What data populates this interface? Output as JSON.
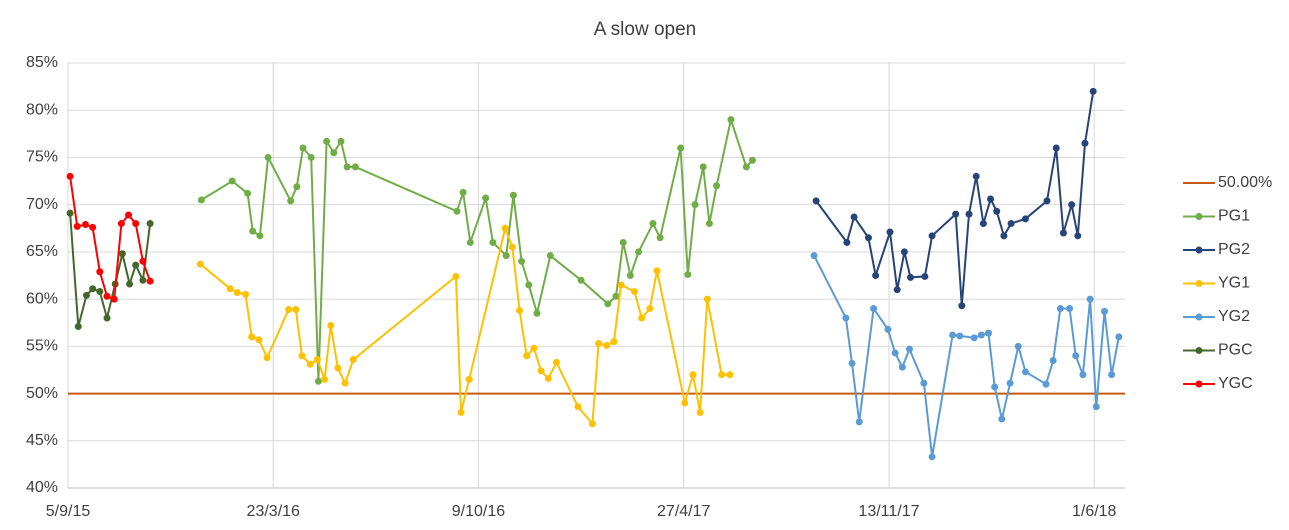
{
  "chart_data": {
    "type": "line",
    "title": "A slow open",
    "xlim": [
      "2015-09-05",
      "2018-07-01"
    ],
    "xticks": [
      {
        "value": "2015-09-05",
        "label": "5/9/15"
      },
      {
        "value": "2016-03-23",
        "label": "23/3/16"
      },
      {
        "value": "2016-10-09",
        "label": "9/10/16"
      },
      {
        "value": "2017-04-27",
        "label": "27/4/17"
      },
      {
        "value": "2017-11-13",
        "label": "13/11/17"
      },
      {
        "value": "2018-06-01",
        "label": "1/6/18"
      }
    ],
    "ylim": [
      40,
      85
    ],
    "yticks": [
      {
        "value": 40,
        "label": "40%"
      },
      {
        "value": 45,
        "label": "45%"
      },
      {
        "value": 50,
        "label": "50%"
      },
      {
        "value": 55,
        "label": "55%"
      },
      {
        "value": 60,
        "label": "60%"
      },
      {
        "value": 65,
        "label": "65%"
      },
      {
        "value": 70,
        "label": "70%"
      },
      {
        "value": 75,
        "label": "75%"
      },
      {
        "value": 80,
        "label": "80%"
      },
      {
        "value": 85,
        "label": "85%"
      }
    ],
    "grid": true,
    "legend": "right",
    "series": [
      {
        "name": "50.00%",
        "color": "#c55a11",
        "marker": false,
        "x": [
          "2015-09-05",
          "2018-07-01"
        ],
        "values": [
          50,
          50
        ]
      },
      {
        "name": "PG1",
        "color": "#70ad47",
        "x": [
          "2016-01-13",
          "2016-02-12",
          "2016-02-27",
          "2016-03-03",
          "2016-03-10",
          "2016-03-18",
          "2016-04-09",
          "2016-04-15",
          "2016-04-21",
          "2016-04-29",
          "2016-05-06",
          "2016-05-14",
          "2016-05-21",
          "2016-05-28",
          "2016-06-03",
          "2016-06-11",
          "2016-09-18",
          "2016-09-24",
          "2016-10-01",
          "2016-10-16",
          "2016-10-23",
          "2016-11-05",
          "2016-11-12",
          "2016-11-20",
          "2016-11-27",
          "2016-12-05",
          "2016-12-18",
          "2017-01-17",
          "2017-02-12",
          "2017-02-20",
          "2017-02-27",
          "2017-03-06",
          "2017-03-14",
          "2017-03-28",
          "2017-04-04",
          "2017-04-24",
          "2017-05-01",
          "2017-05-08",
          "2017-05-16",
          "2017-05-22",
          "2017-05-29",
          "2017-06-12",
          "2017-06-27",
          "2017-07-03"
        ],
        "values": [
          70.5,
          72.5,
          71.2,
          67.2,
          66.7,
          75.0,
          70.4,
          71.9,
          76.0,
          75.0,
          51.3,
          76.7,
          75.5,
          76.7,
          74.0,
          74.0,
          69.3,
          71.3,
          66.0,
          70.7,
          66.0,
          64.6,
          71.0,
          64.0,
          61.5,
          58.5,
          64.6,
          62.0,
          59.5,
          60.3,
          66.0,
          62.5,
          65.0,
          68.0,
          66.5,
          76.0,
          62.6,
          70.0,
          74.0,
          68.0,
          72.0,
          79.0,
          74.0,
          74.7
        ]
      },
      {
        "name": "PG2",
        "color": "#264478",
        "x": [
          "2017-09-03",
          "2017-10-03",
          "2017-10-10",
          "2017-10-24",
          "2017-10-31",
          "2017-11-14",
          "2017-11-21",
          "2017-11-28",
          "2017-12-04",
          "2017-12-18",
          "2017-12-25",
          "2018-01-17",
          "2018-01-23",
          "2018-01-30",
          "2018-02-06",
          "2018-02-13",
          "2018-02-20",
          "2018-02-26",
          "2018-03-05",
          "2018-03-12",
          "2018-03-26",
          "2018-04-16",
          "2018-04-25",
          "2018-05-02",
          "2018-05-10",
          "2018-05-16",
          "2018-05-23",
          "2018-05-31"
        ],
        "values": [
          70.4,
          66.0,
          68.7,
          66.5,
          62.5,
          67.1,
          61.0,
          65.0,
          62.3,
          62.4,
          66.7,
          69.0,
          59.3,
          69.0,
          73.0,
          68.0,
          70.6,
          69.3,
          66.7,
          68.0,
          68.5,
          70.4,
          76.0,
          67.0,
          70.0,
          66.7,
          76.5,
          82.0
        ]
      },
      {
        "name": "YG1",
        "color": "#ffc000",
        "x": [
          "2016-01-12",
          "2016-02-10",
          "2016-02-17",
          "2016-02-25",
          "2016-03-02",
          "2016-03-09",
          "2016-03-17",
          "2016-04-07",
          "2016-04-14",
          "2016-04-20",
          "2016-04-28",
          "2016-05-05",
          "2016-05-12",
          "2016-05-18",
          "2016-05-25",
          "2016-06-01",
          "2016-06-09",
          "2016-09-17",
          "2016-09-22",
          "2016-09-30",
          "2016-11-04",
          "2016-11-11",
          "2016-11-18",
          "2016-11-25",
          "2016-12-02",
          "2016-12-09",
          "2016-12-16",
          "2016-12-24",
          "2017-01-14",
          "2017-01-28",
          "2017-02-03",
          "2017-02-11",
          "2017-02-18",
          "2017-02-25",
          "2017-03-10",
          "2017-03-17",
          "2017-03-25",
          "2017-04-01",
          "2017-04-28",
          "2017-05-06",
          "2017-05-13",
          "2017-05-20",
          "2017-06-03",
          "2017-06-11"
        ],
        "values": [
          63.7,
          61.1,
          60.7,
          60.5,
          56.0,
          55.7,
          53.8,
          58.9,
          58.9,
          54.0,
          53.1,
          53.6,
          51.5,
          57.2,
          52.7,
          51.1,
          53.6,
          62.4,
          48.0,
          51.5,
          67.5,
          65.5,
          58.8,
          54.0,
          54.8,
          52.4,
          51.6,
          53.3,
          48.6,
          46.8,
          55.3,
          55.1,
          55.5,
          61.5,
          60.8,
          58.0,
          59.0,
          63.0,
          49.0,
          52.0,
          48.0,
          60.0,
          52.0,
          52.0
        ]
      },
      {
        "name": "YG2",
        "color": "#5b9bd5",
        "x": [
          "2017-09-01",
          "2017-10-02",
          "2017-10-08",
          "2017-10-15",
          "2017-10-29",
          "2017-11-12",
          "2017-11-19",
          "2017-11-26",
          "2017-12-03",
          "2017-12-17",
          "2017-12-25",
          "2018-01-14",
          "2018-01-21",
          "2018-02-04",
          "2018-02-11",
          "2018-02-18",
          "2018-02-24",
          "2018-03-03",
          "2018-03-11",
          "2018-03-19",
          "2018-03-26",
          "2018-04-15",
          "2018-04-22",
          "2018-04-29",
          "2018-05-08",
          "2018-05-14",
          "2018-05-21",
          "2018-05-28",
          "2018-06-03",
          "2018-06-11",
          "2018-06-18",
          "2018-06-25"
        ],
        "values": [
          64.6,
          58.0,
          53.2,
          47.0,
          59.0,
          56.8,
          54.3,
          52.8,
          54.7,
          51.1,
          43.3,
          56.2,
          56.1,
          55.9,
          56.2,
          56.4,
          50.7,
          47.3,
          51.1,
          55.0,
          52.3,
          51.0,
          53.5,
          59.0,
          59.0,
          54.0,
          52.0,
          60.0,
          48.6,
          58.7,
          52.0,
          56.0
        ]
      },
      {
        "name": "PGC",
        "color": "#43682b",
        "x": [
          "2015-09-07",
          "2015-09-15",
          "2015-09-23",
          "2015-09-29",
          "2015-10-06",
          "2015-10-13",
          "2015-10-21",
          "2015-10-28",
          "2015-11-04",
          "2015-11-10",
          "2015-11-17",
          "2015-11-24"
        ],
        "values": [
          69.1,
          57.1,
          60.4,
          61.1,
          60.8,
          58.0,
          61.6,
          64.8,
          61.6,
          63.6,
          62.0,
          68.0
        ]
      },
      {
        "name": "YGC",
        "color": "#ff0000",
        "x": [
          "2015-09-07",
          "2015-09-14",
          "2015-09-22",
          "2015-09-29",
          "2015-10-06",
          "2015-10-13",
          "2015-10-20",
          "2015-10-27",
          "2015-11-03",
          "2015-11-10",
          "2015-11-17",
          "2015-11-24"
        ],
        "values": [
          73.0,
          67.7,
          67.9,
          67.6,
          62.9,
          60.3,
          60.0,
          68.0,
          68.9,
          68.0,
          64.0,
          61.9
        ]
      }
    ]
  }
}
